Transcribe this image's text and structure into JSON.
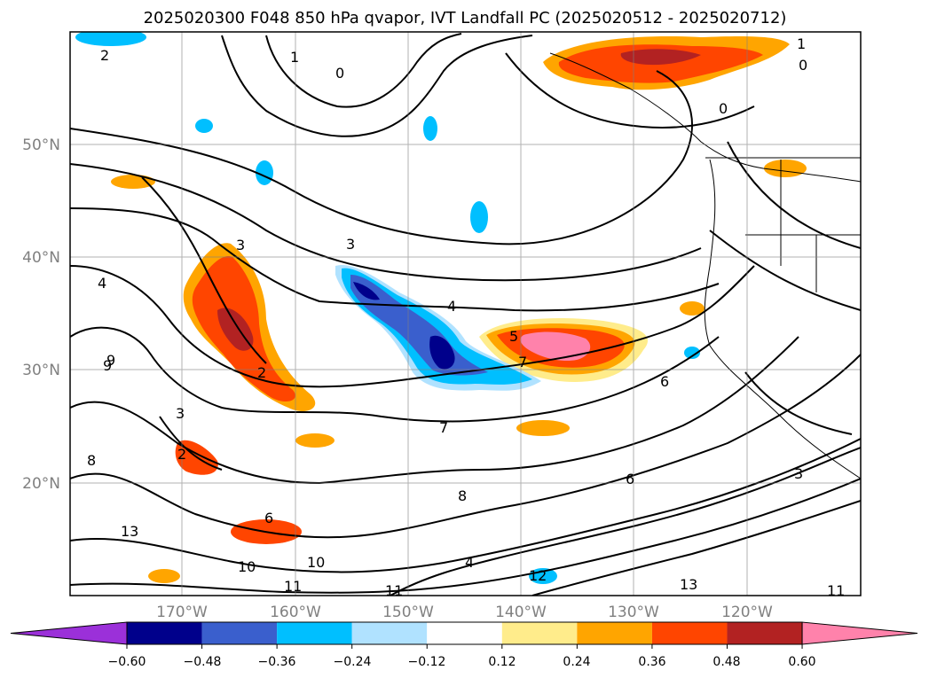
{
  "title": "2025020300 F048 850 hPa qvapor, IVT Landfall PC (2025020512 - 2025020712)",
  "map": {
    "lat_ticks": [
      "50°N",
      "40°N",
      "30°N",
      "20°N"
    ],
    "lon_ticks": [
      "170°W",
      "160°W",
      "150°W",
      "140°W",
      "130°W",
      "120°W"
    ],
    "gridlines": true,
    "contour_labels": [
      "1",
      "0",
      "2",
      "3",
      "4",
      "5",
      "6",
      "7",
      "8",
      "9",
      "10",
      "11",
      "12",
      "13",
      "3",
      "4",
      "6",
      "8",
      "10",
      "11",
      "13",
      "4",
      "2",
      "6",
      "11",
      "9",
      "3",
      "1",
      "0",
      "0",
      "2",
      "3",
      "7"
    ]
  },
  "colorbar": {
    "ticks": [
      "−0.60",
      "−0.48",
      "−0.36",
      "−0.24",
      "−0.12",
      "0.12",
      "0.24",
      "0.36",
      "0.48",
      "0.60"
    ],
    "colors": [
      "#9b30d9",
      "#00008b",
      "#3a5fcd",
      "#00bfff",
      "#b0e2ff",
      "#ffffff",
      "#ffec8b",
      "#ffa500",
      "#ff4500",
      "#b22222",
      "#ff82ab"
    ],
    "extend": "both"
  }
}
